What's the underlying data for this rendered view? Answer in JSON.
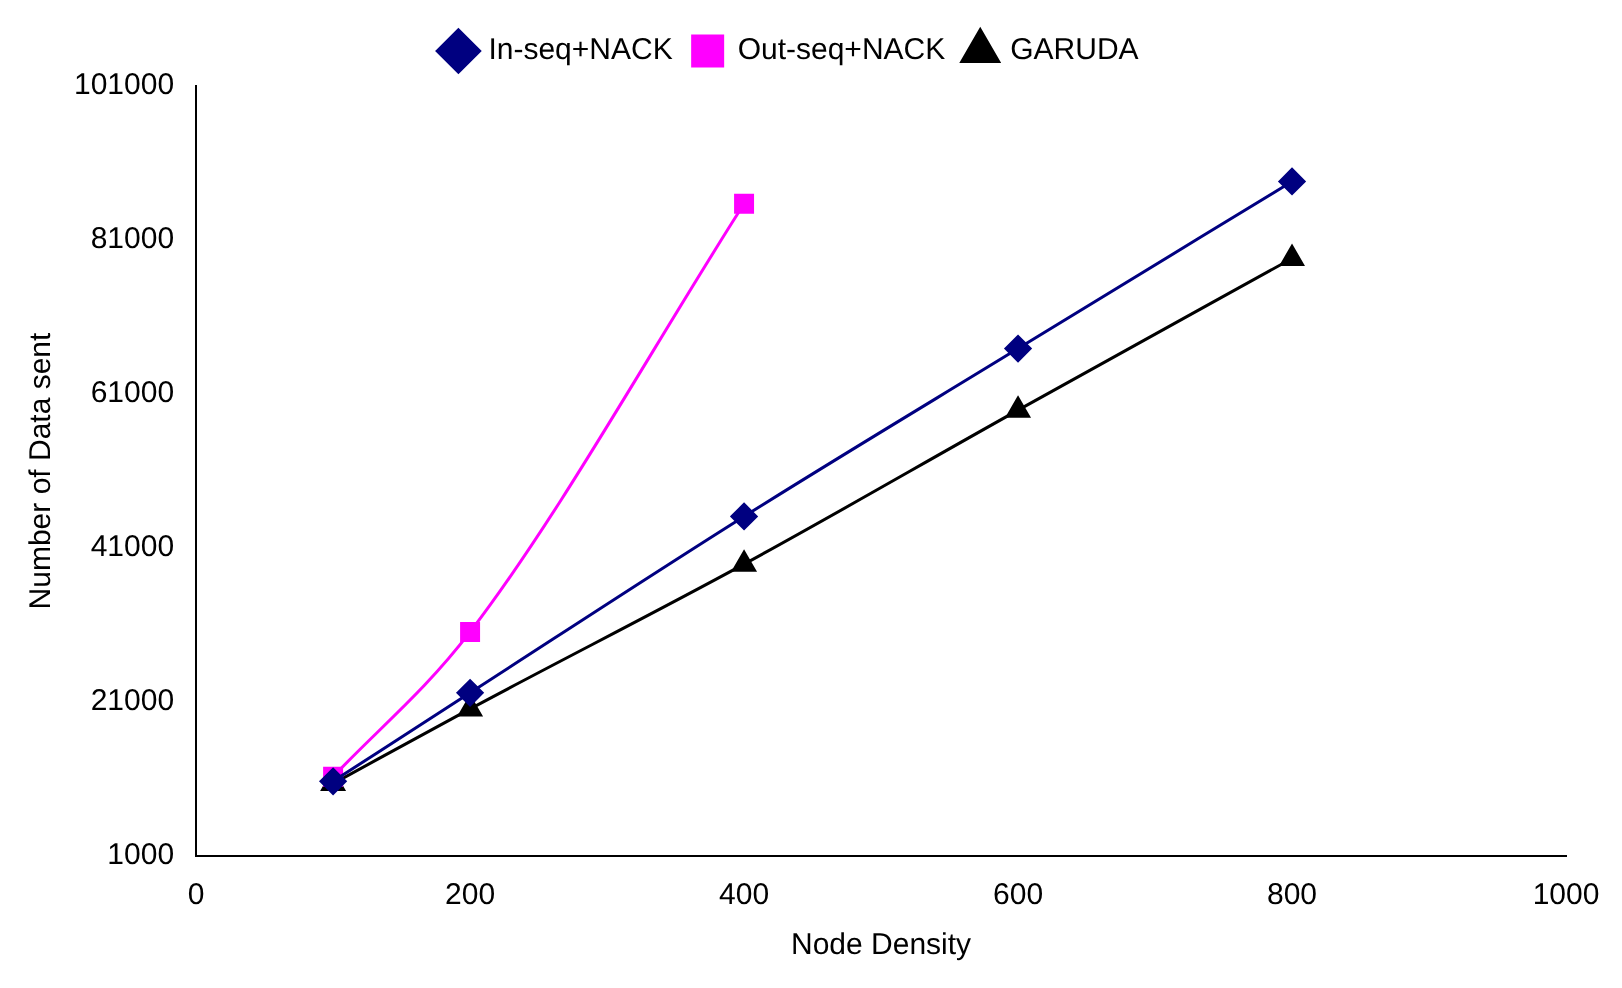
{
  "chart_data": {
    "type": "line",
    "xlabel": "Node Density",
    "ylabel": "Number of Data sent",
    "xlim": [
      0,
      1000
    ],
    "xticks": [
      0,
      200,
      400,
      600,
      800,
      1000
    ],
    "ylim": [
      1000,
      101000
    ],
    "yticks": [
      1000,
      21000,
      41000,
      61000,
      81000,
      101000
    ],
    "grid": false,
    "legend": "top",
    "series": [
      {
        "name": "In-seq+NACK",
        "color": "#000080",
        "marker": "diamond",
        "x": [
          100,
          200,
          400,
          600,
          800
        ],
        "values": [
          10700,
          22200,
          45100,
          66900,
          88600
        ]
      },
      {
        "name": "Out-seq+NACK",
        "color": "#ff00ff",
        "marker": "square",
        "x": [
          100,
          200,
          400
        ],
        "values": [
          11300,
          30100,
          85700
        ]
      },
      {
        "name": "GARUDA",
        "color": "#000000",
        "marker": "triangle",
        "x": [
          100,
          200,
          400,
          600,
          800
        ],
        "values": [
          10400,
          20100,
          38900,
          58900,
          78600
        ]
      }
    ]
  }
}
